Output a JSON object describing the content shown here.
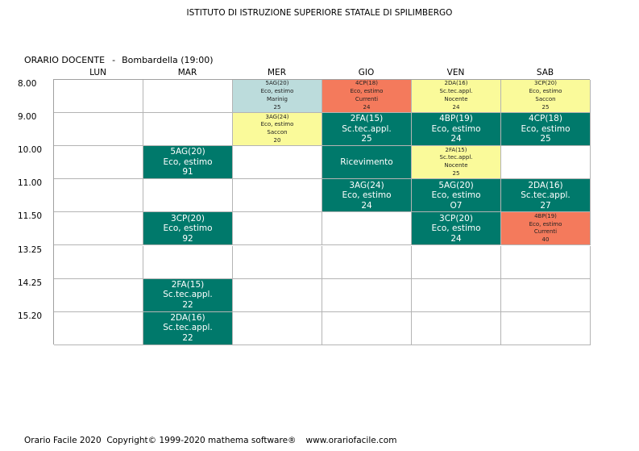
{
  "school": "ISTITUTO DI ISTRUZIONE SUPERIORE STATALE DI SPILIMBERGO",
  "schedule_title": "ORARIO DOCENTE",
  "separator": "-",
  "teacher": "Bombardella",
  "hours_total": "(19:00)",
  "days": [
    "LUN",
    "MAR",
    "MER",
    "GIO",
    "VEN",
    "SAB"
  ],
  "times": [
    "8.00",
    "9.00",
    "10.00",
    "11.00",
    "11.50",
    "13.25",
    "14.25",
    "15.20"
  ],
  "colors": {
    "teal": "#00796b",
    "light_teal": "#bcdcdc",
    "salmon": "#f47a5c",
    "yellow": "#fafa9a"
  },
  "lessons": [
    {
      "day": 2,
      "slot": 0,
      "style": "light",
      "size": "small",
      "lines": [
        "5AG(20)",
        "Eco, estimo",
        "Marinig",
        "25"
      ]
    },
    {
      "day": 3,
      "slot": 0,
      "style": "red",
      "size": "small",
      "lines": [
        "4CP(18)",
        "Eco, estimo",
        "Currenti",
        "24"
      ]
    },
    {
      "day": 4,
      "slot": 0,
      "style": "yellow",
      "size": "small",
      "lines": [
        "2DA(16)",
        "Sc.tec.appl.",
        "Nocente",
        "24"
      ]
    },
    {
      "day": 5,
      "slot": 0,
      "style": "yellow",
      "size": "small",
      "lines": [
        "3CP(20)",
        "Eco, estimo",
        "Saccon",
        "25"
      ]
    },
    {
      "day": 2,
      "slot": 1,
      "style": "yellow",
      "size": "small",
      "lines": [
        "3AG(24)",
        "Eco, estimo",
        "Saccon",
        "20"
      ]
    },
    {
      "day": 3,
      "slot": 1,
      "style": "teal",
      "size": "big",
      "lines": [
        "2FA(15)",
        "Sc.tec.appl.",
        "25"
      ]
    },
    {
      "day": 4,
      "slot": 1,
      "style": "teal",
      "size": "big",
      "lines": [
        "4BP(19)",
        "Eco, estimo",
        "24"
      ]
    },
    {
      "day": 5,
      "slot": 1,
      "style": "teal",
      "size": "big",
      "lines": [
        "4CP(18)",
        "Eco, estimo",
        "25"
      ]
    },
    {
      "day": 1,
      "slot": 2,
      "style": "teal",
      "size": "big",
      "lines": [
        "5AG(20)",
        "Eco, estimo",
        "91"
      ]
    },
    {
      "day": 3,
      "slot": 2,
      "style": "teal",
      "size": "big",
      "lines": [
        "Ricevimento"
      ]
    },
    {
      "day": 4,
      "slot": 2,
      "style": "yellow",
      "size": "small",
      "lines": [
        "2FA(15)",
        "Sc.tec.appl.",
        "Nocente",
        "25"
      ]
    },
    {
      "day": 3,
      "slot": 3,
      "style": "teal",
      "size": "big",
      "lines": [
        "3AG(24)",
        "Eco, estimo",
        "24"
      ]
    },
    {
      "day": 4,
      "slot": 3,
      "style": "teal",
      "size": "big",
      "lines": [
        "5AG(20)",
        "Eco, estimo",
        "O7"
      ]
    },
    {
      "day": 5,
      "slot": 3,
      "style": "teal",
      "size": "big",
      "lines": [
        "2DA(16)",
        "Sc.tec.appl.",
        "27"
      ]
    },
    {
      "day": 1,
      "slot": 4,
      "style": "teal",
      "size": "big",
      "lines": [
        "3CP(20)",
        "Eco, estimo",
        "92"
      ]
    },
    {
      "day": 4,
      "slot": 4,
      "style": "teal",
      "size": "big",
      "lines": [
        "3CP(20)",
        "Eco, estimo",
        "24"
      ]
    },
    {
      "day": 5,
      "slot": 4,
      "style": "red",
      "size": "small",
      "lines": [
        "4BP(19)",
        "Eco, estimo",
        "Currenti",
        "40"
      ]
    },
    {
      "day": 1,
      "slot": 6,
      "style": "teal",
      "size": "big",
      "lines": [
        "2FA(15)",
        "Sc.tec.appl.",
        "22"
      ]
    },
    {
      "day": 1,
      "slot": 7,
      "style": "teal",
      "size": "big",
      "lines": [
        "2DA(16)",
        "Sc.tec.appl.",
        "22"
      ]
    }
  ],
  "footer": {
    "copyright": "Orario Facile 2020  Copyright© 1999-2020 mathema software®",
    "url": "www.orariofacile.com"
  }
}
